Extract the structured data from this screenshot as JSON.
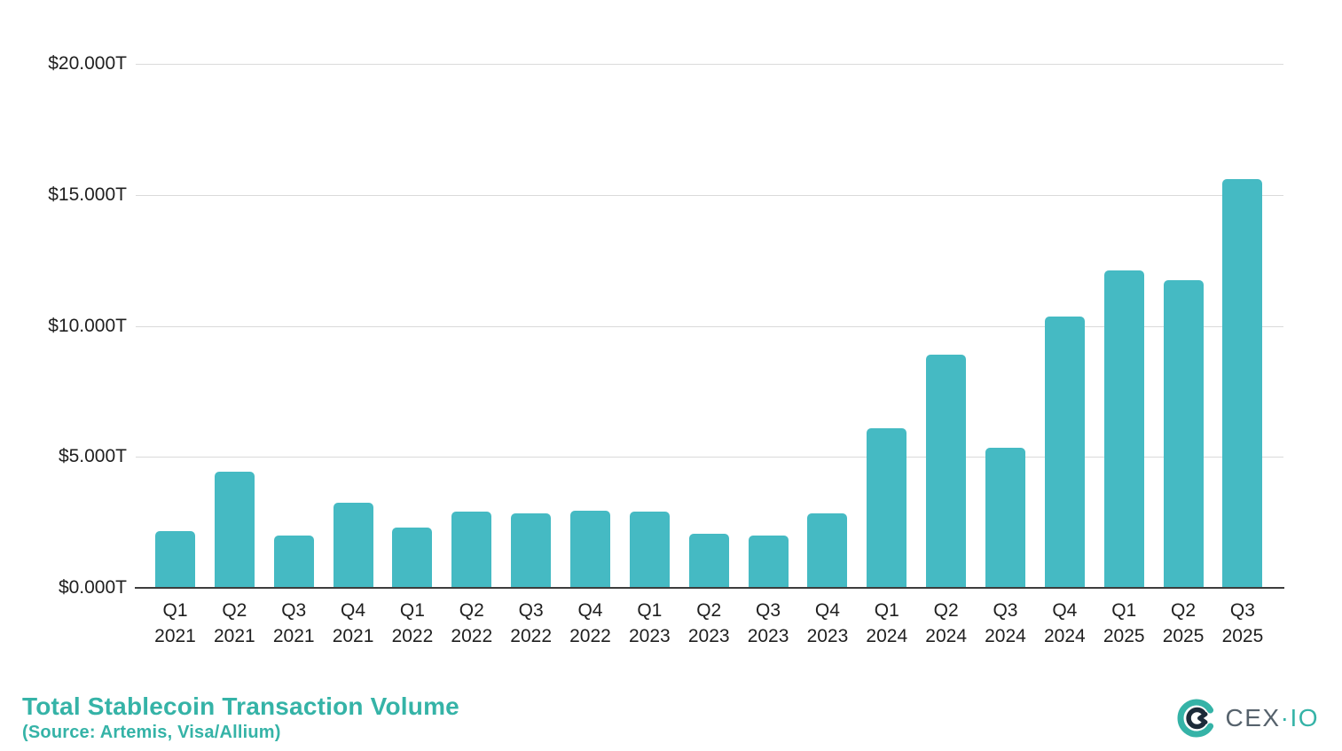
{
  "title_block": {
    "title": "Total Stablecoin Transaction Volume",
    "source": "(Source: Artemis, Visa/Allium)",
    "color": "#35b3a7"
  },
  "logo": {
    "brand_text_primary": "CEX",
    "brand_separator": "·",
    "brand_text_secondary": "IO",
    "text_color": "#56626c",
    "mark_teal": "#35b3a7",
    "mark_dark": "#1c2b39"
  },
  "chart_data": {
    "type": "bar",
    "title": "Total Stablecoin Transaction Volume",
    "categories": [
      "Q1 2021",
      "Q2 2021",
      "Q3 2021",
      "Q4 2021",
      "Q1 2022",
      "Q2 2022",
      "Q3 2022",
      "Q4 2022",
      "Q1 2023",
      "Q2 2023",
      "Q3 2023",
      "Q4 2023",
      "Q1 2024",
      "Q2 2024",
      "Q3 2024",
      "Q4 2024",
      "Q1 2025",
      "Q2 2025",
      "Q3 2025"
    ],
    "values": [
      2.15,
      4.45,
      2.0,
      3.25,
      2.3,
      2.9,
      2.85,
      2.95,
      2.9,
      2.05,
      2.0,
      2.85,
      6.1,
      8.9,
      5.35,
      10.35,
      12.1,
      11.75,
      15.6
    ],
    "unit": "T",
    "bar_color": "#45bac3",
    "ylim": [
      0,
      20
    ],
    "y_ticks": [
      {
        "value": 0,
        "label": "$0.000T"
      },
      {
        "value": 5,
        "label": "$5.000T"
      },
      {
        "value": 10,
        "label": "$10.000T"
      },
      {
        "value": 15,
        "label": "$15.000T"
      },
      {
        "value": 20,
        "label": "$20.000T"
      }
    ],
    "grid": "horizontal",
    "legend": "none",
    "xlabel": "",
    "ylabel": ""
  }
}
